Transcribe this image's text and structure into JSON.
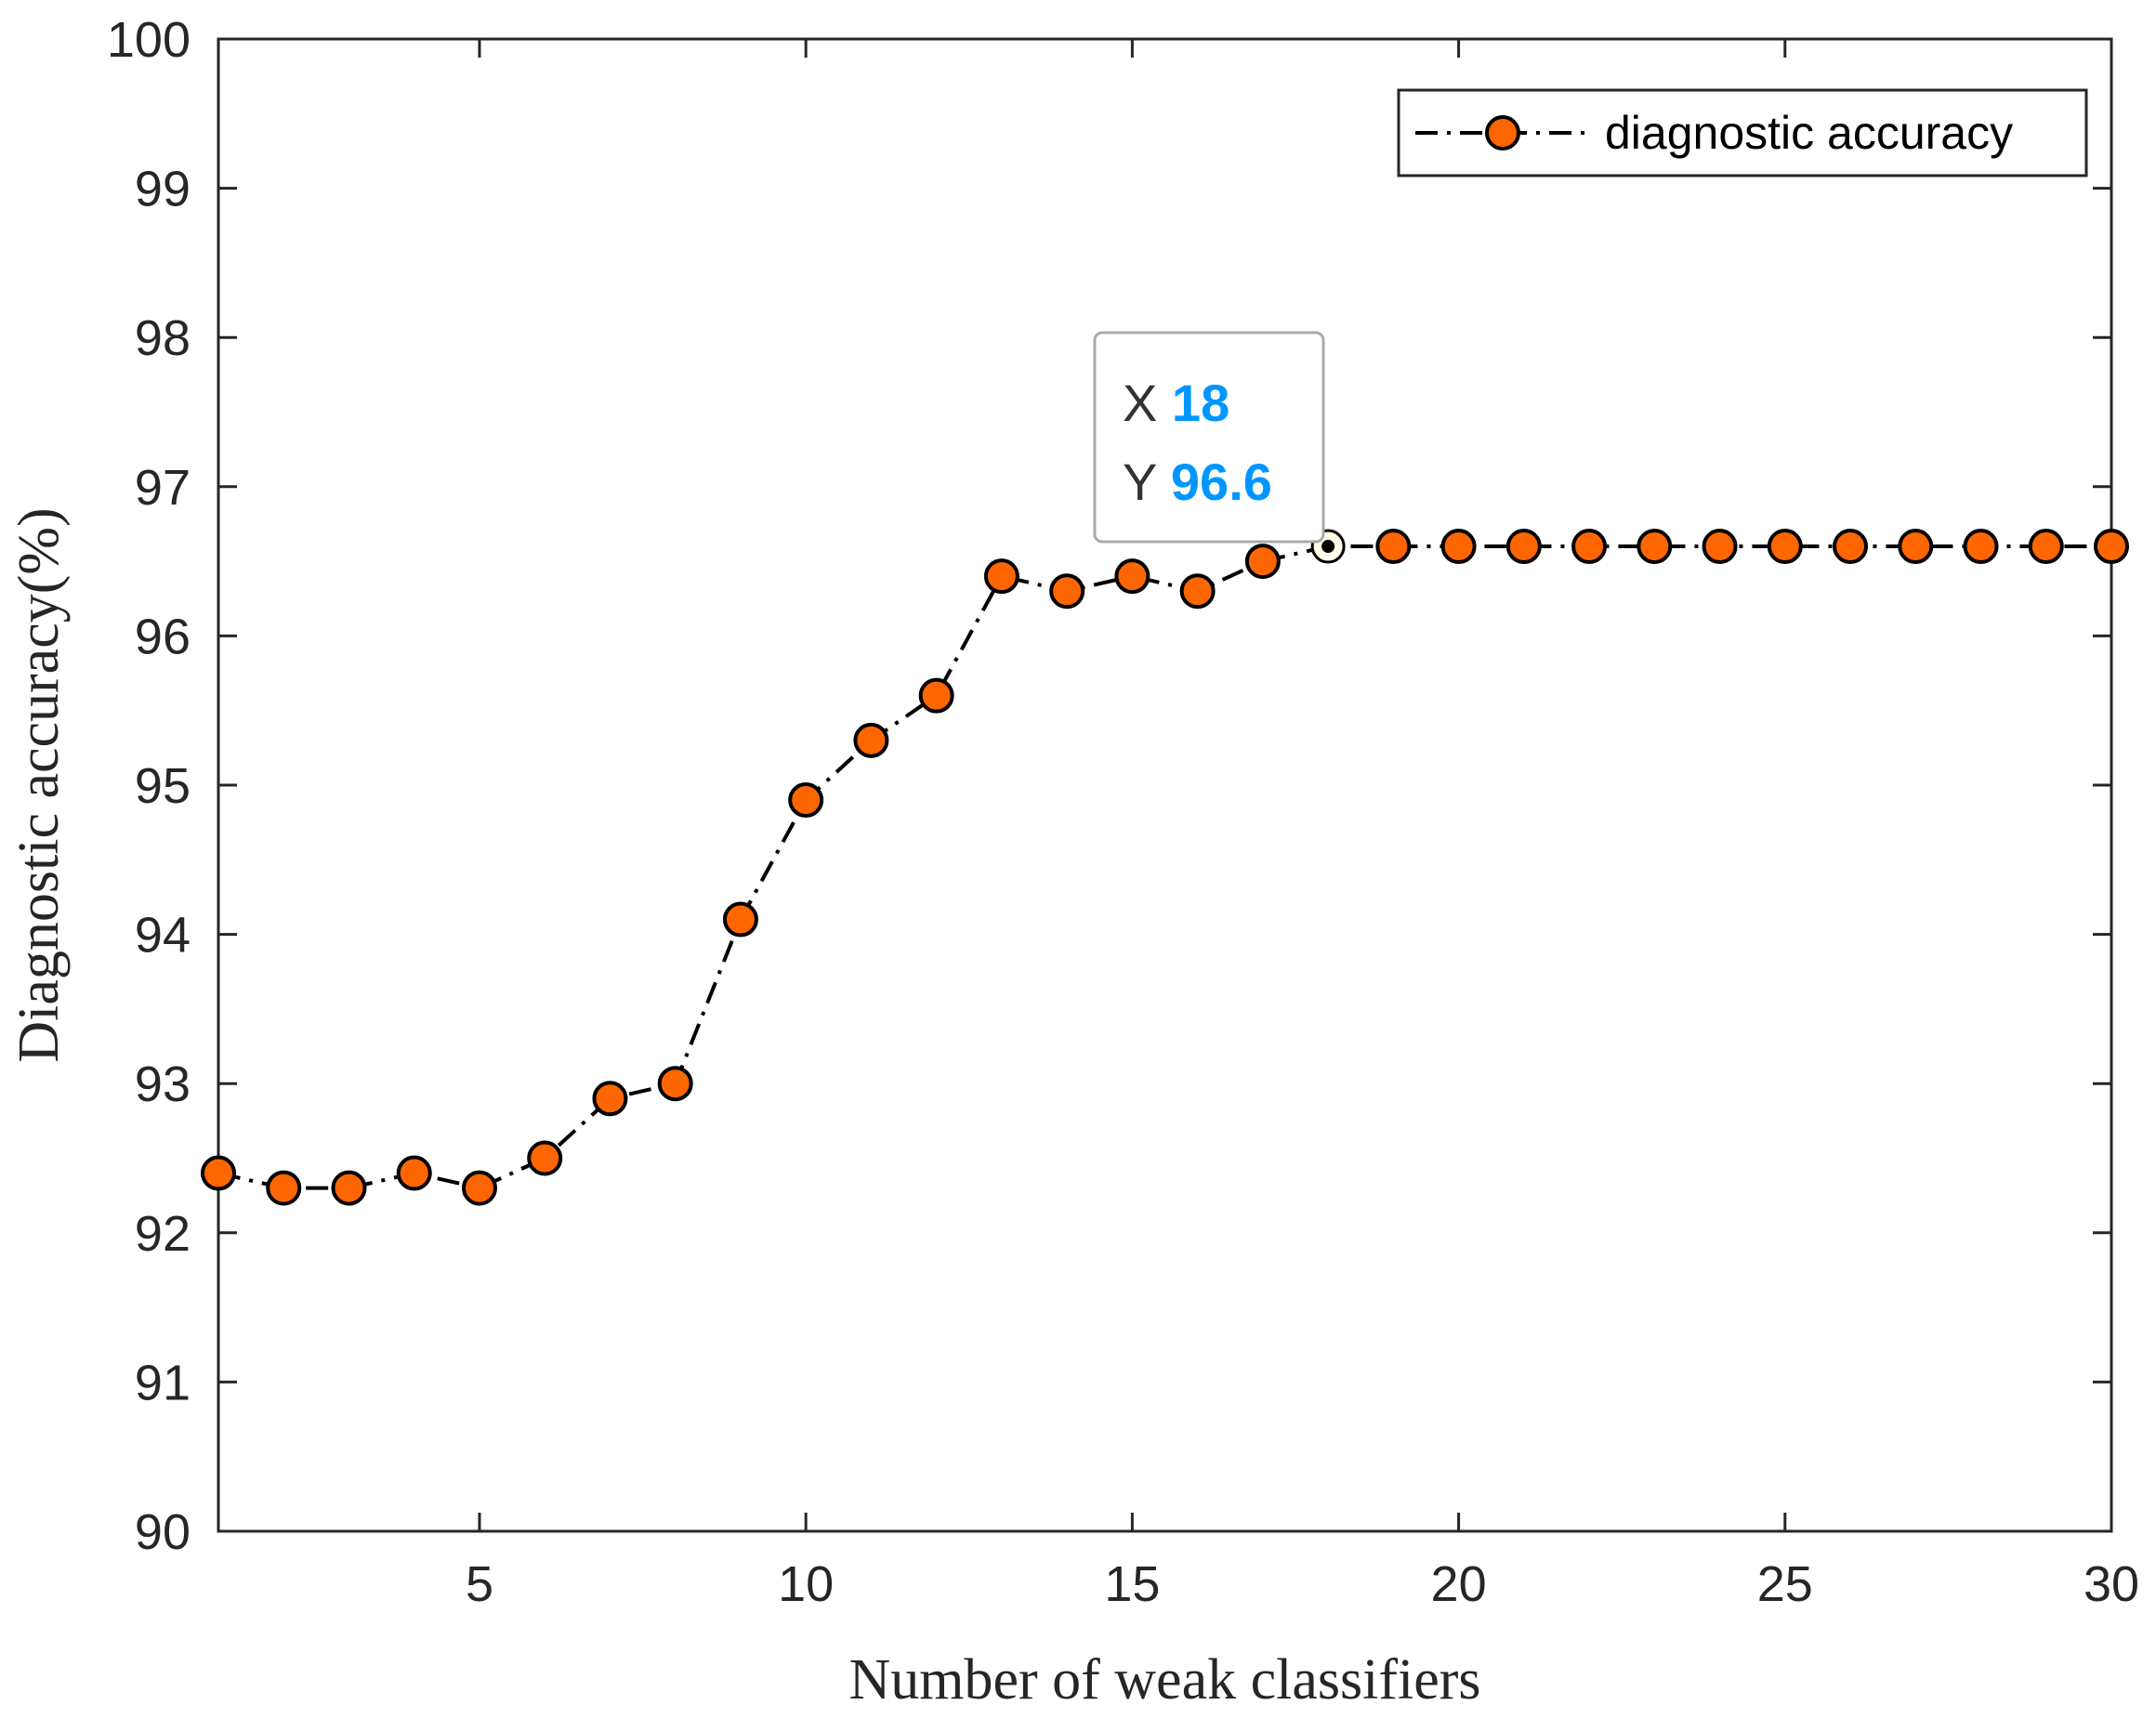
{
  "chart_data": {
    "type": "line",
    "title": "",
    "xlabel": "Number of weak classifiers",
    "ylabel": "Diagnostic accuracy(%)",
    "xlim": [
      1,
      30
    ],
    "ylim": [
      90,
      100
    ],
    "xticks": [
      5,
      10,
      15,
      20,
      25,
      30
    ],
    "yticks": [
      90,
      91,
      92,
      93,
      94,
      95,
      96,
      97,
      98,
      99,
      100
    ],
    "grid": false,
    "legend_position": "top-right",
    "series": [
      {
        "name": "diagnostic accuracy",
        "line_style": "dash-dot",
        "line_color": "#000000",
        "marker": "circle",
        "marker_color": "#FF6600",
        "x": [
          1,
          2,
          3,
          4,
          5,
          6,
          7,
          8,
          9,
          10,
          11,
          12,
          13,
          14,
          15,
          16,
          17,
          18,
          19,
          20,
          21,
          22,
          23,
          24,
          25,
          26,
          27,
          28,
          29,
          30
        ],
        "values": [
          92.4,
          92.3,
          92.3,
          92.4,
          92.3,
          92.5,
          92.9,
          93.0,
          94.1,
          94.9,
          95.3,
          95.6,
          96.4,
          96.3,
          96.4,
          96.3,
          96.5,
          96.6,
          96.6,
          96.6,
          96.6,
          96.6,
          96.6,
          96.6,
          96.6,
          96.6,
          96.6,
          96.6,
          96.6,
          96.6
        ]
      }
    ],
    "datatip": {
      "x_key": "X",
      "x_value": "18",
      "y_key": "Y",
      "y_value": "96.6",
      "target_x": 18,
      "target_y": 96.6,
      "value_color": "#0096FF"
    }
  }
}
